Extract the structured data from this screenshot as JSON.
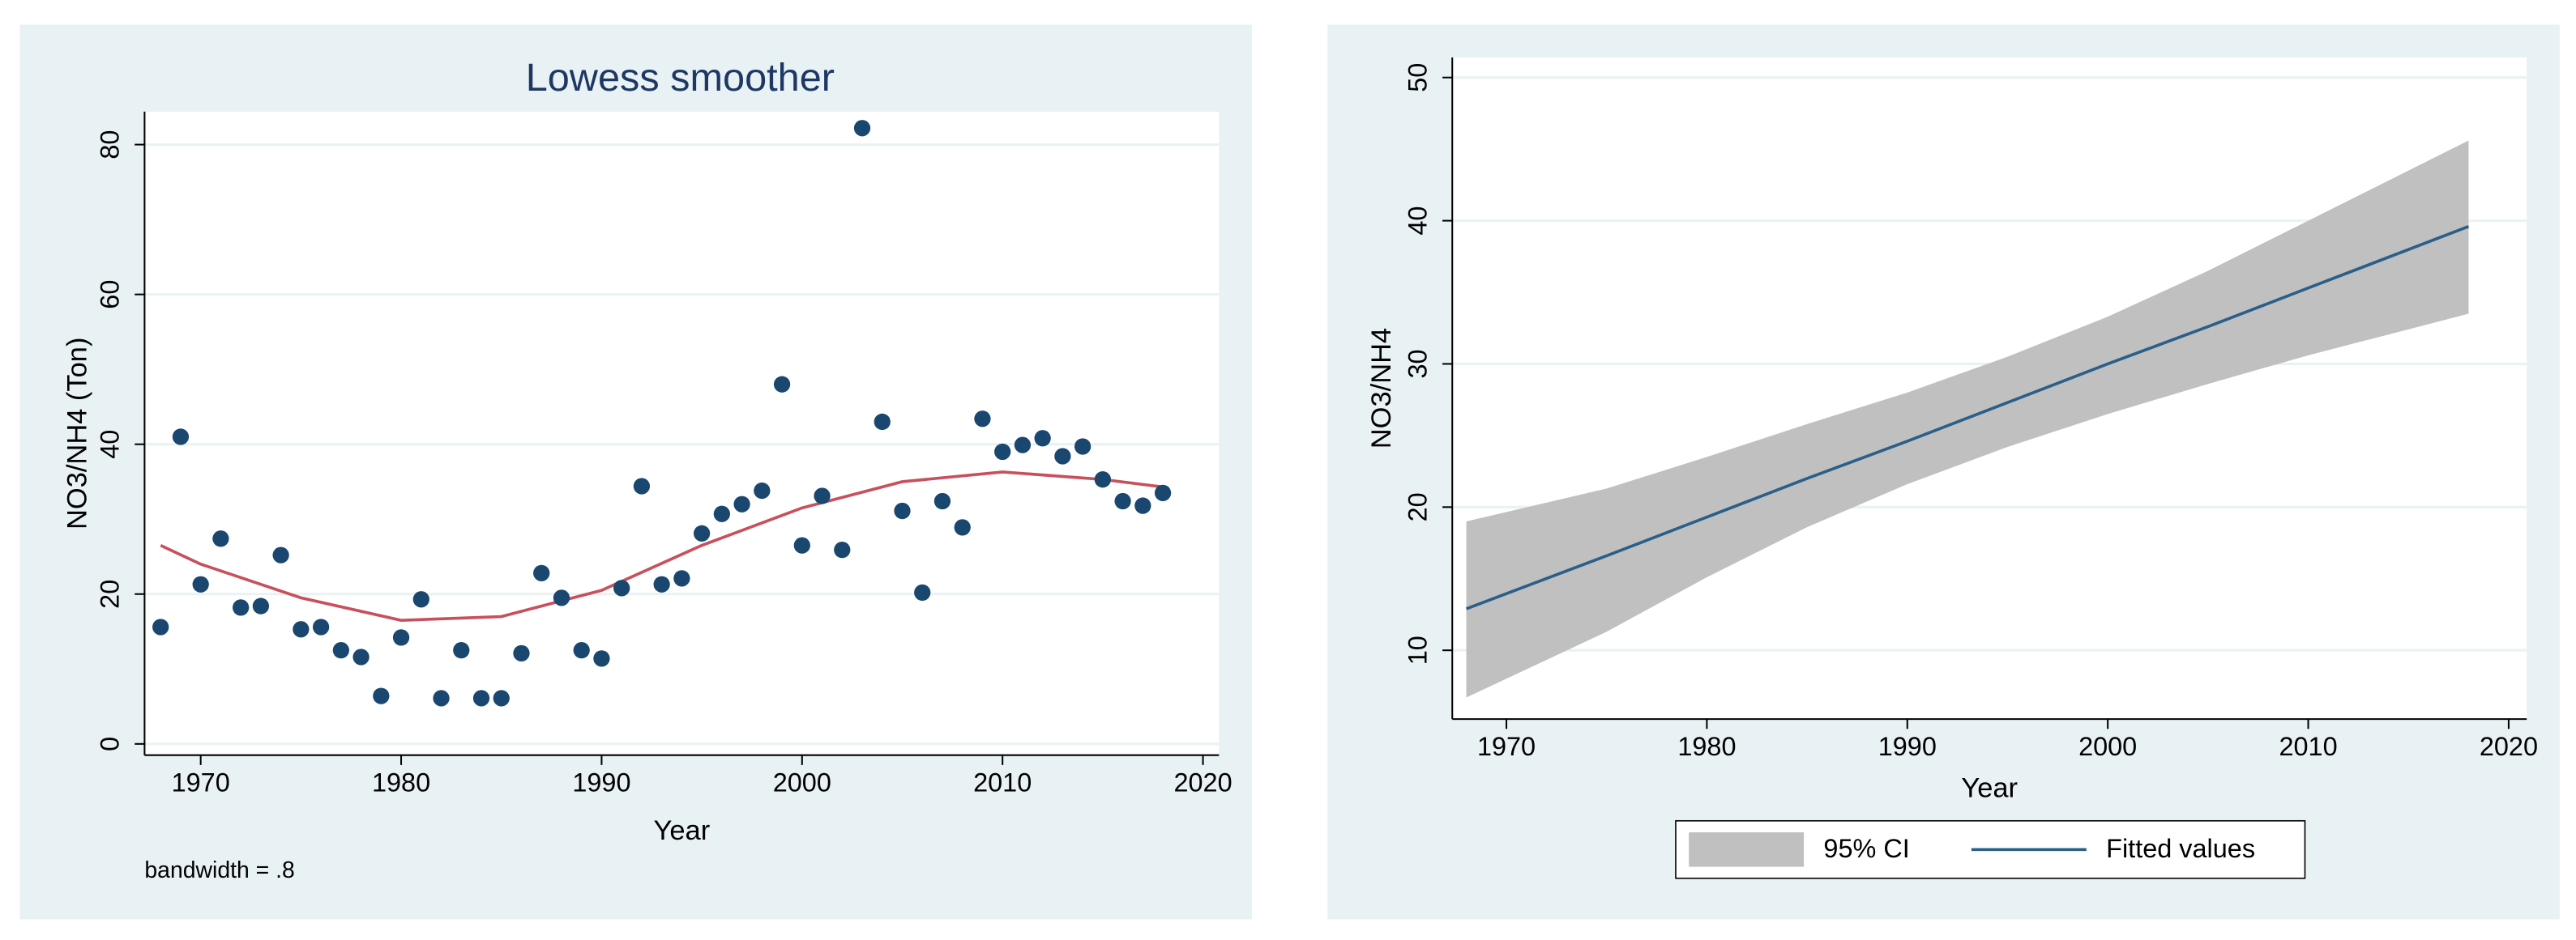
{
  "chart_data": [
    {
      "type": "scatter",
      "title": "Lowess smoother",
      "x_label": "Year",
      "y_label": "NO3/NH4 (Ton)",
      "note": "bandwidth = .8",
      "x": [
        1968,
        1969,
        1970,
        1971,
        1972,
        1973,
        1974,
        1975,
        1976,
        1977,
        1978,
        1979,
        1980,
        1981,
        1982,
        1983,
        1984,
        1985,
        1986,
        1987,
        1988,
        1989,
        1990,
        1991,
        1992,
        1993,
        1994,
        1995,
        1996,
        1997,
        1998,
        1999,
        2000,
        2001,
        2002,
        2003,
        2004,
        2005,
        2006,
        2007,
        2008,
        2009,
        2010,
        2011,
        2012,
        2013,
        2014,
        2015,
        2016,
        2017,
        2018
      ],
      "values": [
        15.6,
        41,
        21.3,
        27.4,
        18.2,
        18.4,
        25.2,
        15.3,
        15.6,
        12.5,
        11.6,
        6.4,
        14.2,
        19.3,
        6.1,
        12.5,
        6.1,
        6.1,
        12.1,
        22.8,
        19.5,
        12.5,
        11.4,
        20.8,
        34.4,
        21.3,
        22.1,
        28.1,
        30.7,
        32,
        33.8,
        48,
        26.5,
        33.1,
        25.9,
        82.2,
        43,
        31.1,
        20.2,
        32.4,
        28.9,
        43.4,
        39,
        39.9,
        40.8,
        38.4,
        39.7,
        35.3,
        32.4,
        31.8,
        33.5
      ],
      "color": "#1a476f",
      "smoother": {
        "x": [
          1968,
          1970,
          1975,
          1980,
          1985,
          1990,
          1995,
          2000,
          2005,
          2010,
          2015,
          2018
        ],
        "values": [
          26.5,
          24,
          19.5,
          16.5,
          17,
          20.5,
          26.5,
          31.5,
          35,
          36.3,
          35.3,
          34.3
        ],
        "color": "#c8505d"
      },
      "xlim": [
        1967.2,
        2020.8
      ],
      "ylim": [
        -1.5,
        84.4
      ],
      "xticks": [
        1970,
        1980,
        1990,
        2000,
        2010,
        2020
      ],
      "yticks": [
        0,
        20,
        40,
        60,
        80
      ],
      "grid": true
    },
    {
      "type": "line",
      "x_label": "Year",
      "y_label": "NO3/NH4",
      "x": [
        1968,
        1975,
        1980,
        1985,
        1990,
        1995,
        2000,
        2005,
        2010,
        2018
      ],
      "series": [
        {
          "name": "95% CI",
          "color": "#c0c0c0",
          "upper": [
            19,
            21.3,
            23.5,
            25.8,
            28,
            30.5,
            33.3,
            36.5,
            40,
            45.6
          ],
          "lower": [
            6.7,
            11.3,
            15.1,
            18.6,
            21.6,
            24.2,
            26.5,
            28.6,
            30.6,
            33.5
          ]
        },
        {
          "name": "Fitted values",
          "color": "#2a5f8a",
          "values": [
            12.9,
            16.6,
            19.3,
            22,
            24.6,
            27.3,
            30,
            32.6,
            35.3,
            39.6
          ]
        }
      ],
      "xlim": [
        1967.3,
        2020.9
      ],
      "ylim": [
        5.2,
        51.4
      ],
      "xticks": [
        1970,
        1980,
        1990,
        2000,
        2010,
        2020
      ],
      "yticks": [
        10,
        20,
        30,
        40,
        50
      ],
      "grid": true,
      "legend": "bottom"
    }
  ]
}
